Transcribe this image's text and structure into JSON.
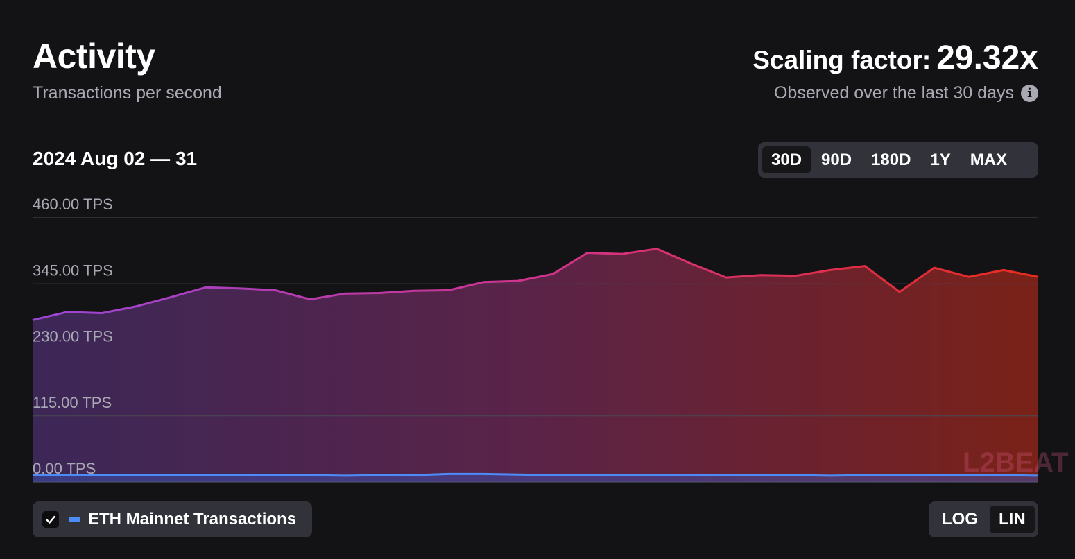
{
  "header": {
    "title": "Activity",
    "subtitle": "Transactions per second",
    "scaling_label": "Scaling factor:",
    "scaling_value": "29.32x",
    "observed_text": "Observed over the last 30 days",
    "info_icon": "info-circle-icon"
  },
  "range_label": "2024 Aug 02 — 31",
  "timeframes": [
    {
      "label": "30D",
      "active": true
    },
    {
      "label": "90D",
      "active": false
    },
    {
      "label": "180D",
      "active": false
    },
    {
      "label": "1Y",
      "active": false
    },
    {
      "label": "MAX",
      "active": false
    }
  ],
  "legend": {
    "checkbox_icon": "checkmark-icon",
    "checked": true,
    "label": "ETH Mainnet Transactions",
    "color": "#4d8bf6"
  },
  "scale_toggle": [
    {
      "label": "LOG",
      "active": false
    },
    {
      "label": "LIN",
      "active": true
    }
  ],
  "watermark": "L2BEAT",
  "colors": {
    "background": "#131316",
    "gradient_start": "#9a45d6",
    "gradient_mid": "#d0348d",
    "gradient_end": "#ea2b1e",
    "eth_line": "#4d8bf6",
    "gridline": "#4a4a52",
    "tick_text": "#a9a9b3"
  },
  "chart_data": {
    "type": "area",
    "x": [
      "2024-08-02",
      "2024-08-03",
      "2024-08-04",
      "2024-08-05",
      "2024-08-06",
      "2024-08-07",
      "2024-08-08",
      "2024-08-09",
      "2024-08-10",
      "2024-08-11",
      "2024-08-12",
      "2024-08-13",
      "2024-08-14",
      "2024-08-15",
      "2024-08-16",
      "2024-08-17",
      "2024-08-18",
      "2024-08-19",
      "2024-08-20",
      "2024-08-21",
      "2024-08-22",
      "2024-08-23",
      "2024-08-24",
      "2024-08-25",
      "2024-08-26",
      "2024-08-27",
      "2024-08-28",
      "2024-08-29",
      "2024-08-30",
      "2024-08-31"
    ],
    "series": [
      {
        "values": [
          282,
          296,
          294,
          306,
          322,
          339,
          337,
          334,
          318,
          328,
          329,
          333,
          334,
          348,
          350,
          362,
          399,
          397,
          406,
          380,
          356,
          360,
          359,
          369,
          376,
          331,
          373,
          357,
          369,
          357
        ]
      },
      {
        "name": "ETH Mainnet Transactions",
        "values": [
          12,
          12,
          12,
          12,
          12,
          12,
          12,
          12,
          12,
          11,
          12,
          12,
          14,
          14,
          13,
          12,
          12,
          12,
          12,
          12,
          12,
          12,
          12,
          11,
          12,
          12,
          12,
          12,
          12,
          11
        ]
      }
    ],
    "ylim": [
      0,
      460
    ],
    "yticks": [
      "0.00 TPS",
      "115.00 TPS",
      "230.00 TPS",
      "345.00 TPS",
      "460.00 TPS"
    ],
    "ytick_values": [
      0,
      115,
      230,
      345,
      460
    ],
    "scale": "linear",
    "grid": true
  }
}
